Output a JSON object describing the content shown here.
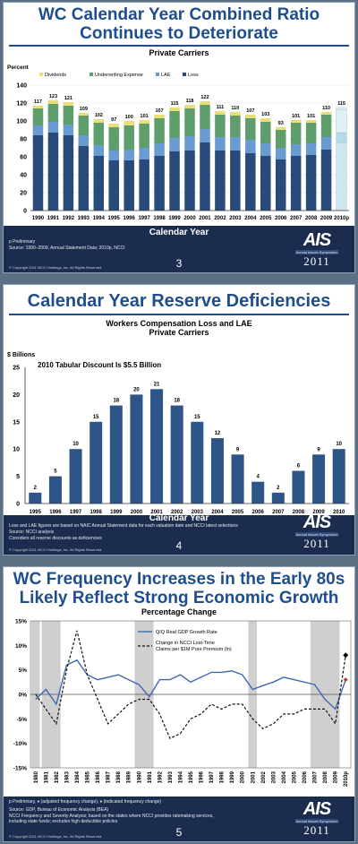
{
  "slides": [
    {
      "title_line1": "WC Calendar Year Combined Ratio",
      "title_line2": "Continues to Deteriorate",
      "subtitle": "Private Carriers",
      "ylabel": "Percent",
      "xtitle": "Calendar Year",
      "notes": [
        "p Preliminary",
        "Source: 1990–2009, Annual Statement Data; 2010p, NCCI"
      ],
      "copyright": "© Copyright 2011 NCCI Holdings, Inc. All Rights Reserved.",
      "page": "3"
    },
    {
      "title": "Calendar Year Reserve Deficiencies",
      "subtitle_line1": "Workers Compensation Loss and LAE",
      "subtitle_line2": "Private Carriers",
      "ylabel": "$ Billions",
      "annotation": "2010 Tabular Discount Is $5.5 Billion",
      "xtitle": "Calendar Year",
      "notes": [
        "Loss and LAE figures are based on NAIC Annual Statement data for each valuation date and NCCI latest selections",
        "Source: NCCI analysis",
        "Considers all reserve discounts as deficiencies"
      ],
      "copyright": "© Copyright 2011 NCCI Holdings, Inc. All Rights Reserved.",
      "page": "4"
    },
    {
      "title_line1": "WC Frequency Increases in the Early 80s",
      "title_line2": "Likely Reflect Strong Economic Growth",
      "subtitle": "Percentage Change",
      "notes": [
        "p Preliminary, ♦ (adjusted frequency change), ♦ (indicated frequency change)",
        "Source: GDP, Bureau of Economic Analysis (BEA)",
        "NCCI Frequency and Severity Analysis; based on the states where NCCI provides ratemaking services,",
        "including state funds; excludes high deductible policies"
      ],
      "copyright": "© Copyright 2011 NCCI Holdings, Inc. All Rights Reserved.",
      "page": "5"
    }
  ],
  "logo": {
    "text": "AIS",
    "tagline": "Annual Issues Symposium",
    "year": "2011"
  },
  "colors": {
    "loss": "#2b4a7c",
    "lae": "#6a9bd0",
    "uw": "#5f9e6c",
    "div": "#e8de7a",
    "bar2": "#2e5588",
    "gdp": "#3f68b0",
    "nav": "#1c2c4e",
    "title": "#1f4e8c",
    "recession": "#cfcfcf"
  },
  "chart_data": [
    {
      "type": "bar",
      "stacked": true,
      "categories": [
        "1990",
        "1991",
        "1992",
        "1993",
        "1994",
        "1995",
        "1996",
        "1997",
        "1998",
        "1999",
        "2000",
        "2001",
        "2002",
        "2003",
        "2004",
        "2005",
        "2006",
        "2007",
        "2008",
        "2009",
        "2010p"
      ],
      "totals": [
        117,
        123,
        121,
        109,
        102,
        97,
        100,
        101,
        107,
        115,
        118,
        122,
        111,
        110,
        107,
        103,
        93,
        101,
        101,
        110,
        115
      ],
      "series": [
        {
          "name": "Loss",
          "values": [
            84,
            87,
            84,
            72,
            61,
            56,
            56,
            57,
            61,
            66,
            67,
            76,
            67,
            67,
            64,
            61,
            57,
            61,
            62,
            68,
            76
          ]
        },
        {
          "name": "LAE",
          "values": [
            11,
            12,
            12,
            12,
            12,
            11,
            12,
            13,
            14,
            15,
            16,
            15,
            15,
            15,
            15,
            14,
            13,
            13,
            13,
            14,
            11
          ]
        },
        {
          "name": "Underwriting Expense",
          "values": [
            19,
            20,
            21,
            22,
            25,
            26,
            27,
            27,
            28,
            30,
            31,
            27,
            25,
            24,
            24,
            24,
            20,
            24,
            23,
            25,
            26
          ]
        },
        {
          "name": "Dividends",
          "values": [
            3,
            4,
            4,
            3,
            4,
            4,
            5,
            4,
            4,
            4,
            4,
            4,
            4,
            4,
            4,
            4,
            3,
            3,
            3,
            3,
            2
          ]
        }
      ],
      "ylim": [
        0,
        140
      ],
      "yticks": [
        0,
        20,
        40,
        60,
        80,
        100,
        120,
        140
      ],
      "ylabel": "Percent",
      "xlabel": "Calendar Year",
      "legend": "top-left"
    },
    {
      "type": "bar",
      "categories": [
        "1995",
        "1996",
        "1997",
        "1998",
        "1999",
        "2000",
        "2001",
        "2002",
        "2003",
        "2004",
        "2005",
        "2006",
        "2007",
        "2008",
        "2009",
        "2010"
      ],
      "values": [
        2,
        5,
        10,
        15,
        18,
        20,
        21,
        18,
        15,
        12,
        9,
        4,
        2,
        6,
        9,
        10
      ],
      "ylim": [
        0,
        25
      ],
      "yticks": [
        0,
        5,
        10,
        15,
        20,
        25
      ],
      "ylabel": "$ Billions",
      "xlabel": "Calendar Year"
    },
    {
      "type": "line",
      "x": [
        "1980",
        "1981",
        "1982",
        "1983",
        "1984",
        "1985",
        "1986",
        "1987",
        "1988",
        "1989",
        "1990",
        "1991",
        "1992",
        "1993",
        "1994",
        "1995",
        "1996",
        "1997",
        "1998",
        "1999",
        "2000",
        "2001",
        "2002",
        "2003",
        "2004",
        "2005",
        "2006",
        "2007",
        "2008",
        "2009",
        "2010p"
      ],
      "series": [
        {
          "name": "Q/Q Real GDP Growth Rate",
          "values": [
            -1,
            1,
            -2,
            6,
            7,
            4,
            3,
            3.5,
            4,
            3,
            2,
            -0.5,
            3,
            3,
            4,
            2.5,
            3.5,
            4.5,
            4.5,
            4.8,
            4,
            1,
            1.8,
            2.5,
            3.5,
            3,
            2.5,
            2,
            -1,
            -3,
            3
          ]
        },
        {
          "name": "Change in NCCI Lost-Time Claims per $1M Pure Premium (ln)",
          "values": [
            0,
            -3,
            -6,
            5,
            13,
            4,
            -1,
            -6,
            -4,
            -2,
            -1,
            -1,
            -4,
            -9,
            -8,
            -5,
            -4,
            -2,
            -3,
            -2,
            -2,
            -5,
            -7,
            -6,
            -4,
            -4,
            -3,
            -3,
            -3,
            -6,
            8
          ]
        }
      ],
      "ylim": [
        -15,
        15
      ],
      "yticks": [
        -15,
        -10,
        -5,
        0,
        5,
        10,
        15
      ],
      "ytick_labels": [
        "-15%",
        "-10%",
        "-5%",
        "0%",
        "5%",
        "10%",
        "15%"
      ],
      "recessions": [
        [
          "1980",
          "1980"
        ],
        [
          "1981",
          "1982"
        ],
        [
          "1990",
          "1991"
        ],
        [
          "2001",
          "2001"
        ],
        [
          "2007",
          "2009"
        ]
      ]
    }
  ]
}
